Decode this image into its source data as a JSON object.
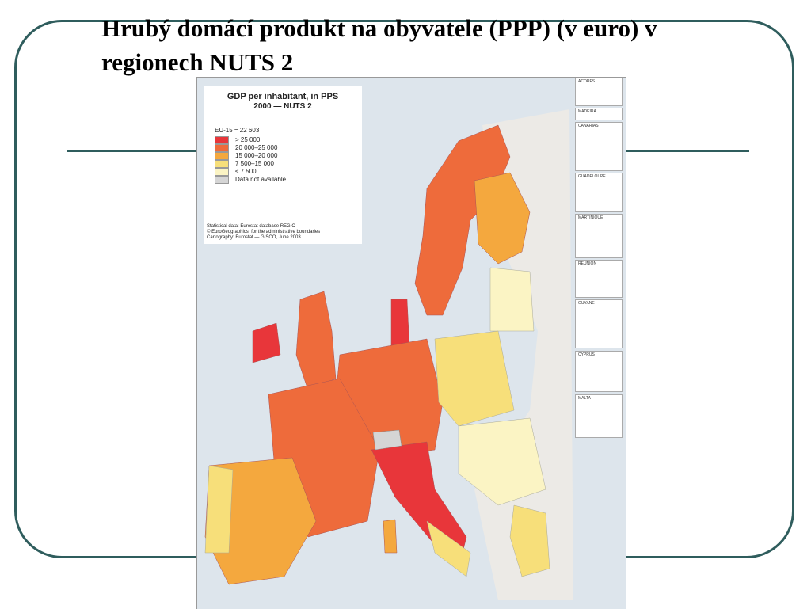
{
  "header": {
    "title": "Hrubý domácí produkt na obyvatele (PPP) (v euro) v regionech NUTS 2"
  },
  "map": {
    "title": "GDP per inhabitant, in PPS",
    "subtitle": "2000 — NUTS 2",
    "reference": "EU-15 = 22 603",
    "legend": [
      {
        "label": "> 25 000",
        "color": "#e8363a"
      },
      {
        "label": "20 000–25 000",
        "color": "#ee6b3b"
      },
      {
        "label": "15 000–20 000",
        "color": "#f4a83e"
      },
      {
        "label": "7 500–15 000",
        "color": "#f7df7a"
      },
      {
        "label": "≤ 7 500",
        "color": "#fbf4c4"
      },
      {
        "label": "Data not available",
        "color": "#d5d5d5"
      }
    ],
    "credits": [
      "Statistical data: Eurostat database REGIO",
      "© EuroGeographics, for the administrative boundaries",
      "Cartography: Eurostat — GISCO, June 2003"
    ],
    "insets": [
      "ACORES",
      "MADEIRA",
      "CANARIAS",
      "GUADELOUPE",
      "MARTINIQUE",
      "REUNION",
      "GUYANE",
      "CYPRUS",
      "MALTA"
    ]
  }
}
